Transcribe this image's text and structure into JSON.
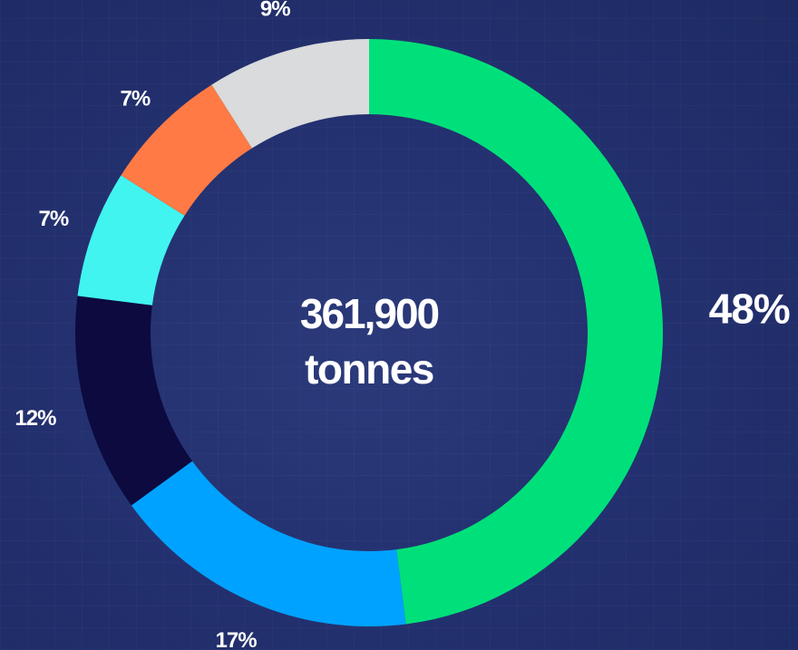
{
  "chart_data": {
    "type": "pie",
    "donut": true,
    "center_value": "361,900",
    "center_unit": "tonnes",
    "slices": [
      {
        "label": "48%",
        "value": 48,
        "color": "#00e07a"
      },
      {
        "label": "17%",
        "value": 17,
        "color": "#00a2ff"
      },
      {
        "label": "12%",
        "value": 12,
        "color": "#0c0a3e"
      },
      {
        "label": "7%",
        "value": 7,
        "color": "#41f4f0"
      },
      {
        "label": "7%",
        "value": 7,
        "color": "#ff7a45"
      },
      {
        "label": "9%",
        "value": 9,
        "color": "#d9dbdc"
      }
    ]
  }
}
